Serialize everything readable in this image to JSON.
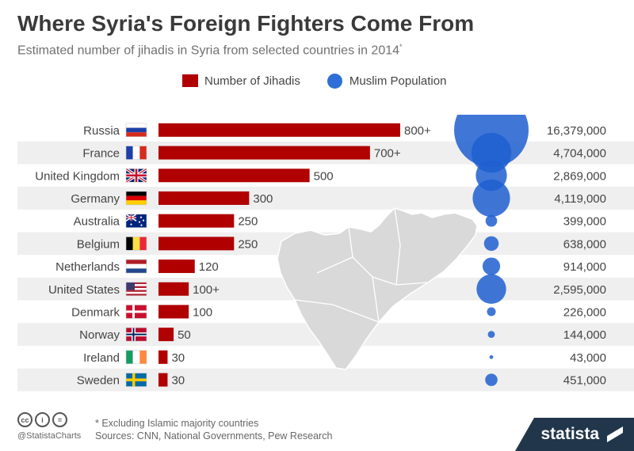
{
  "title": "Where Syria's Foreign Fighters Come From",
  "subtitle": "Estimated number of jihadis in Syria from selected countries in 2014",
  "subtitle_mark": "*",
  "legend": {
    "bars": "Number of Jihadis",
    "bubbles": "Muslim Population"
  },
  "colors": {
    "bar": "#b00000",
    "bubble": "#1f5fd0",
    "stripe": "#efefef",
    "map": "#d9d9d9"
  },
  "chart_data": {
    "type": "bar",
    "categories": [
      "Russia",
      "France",
      "United Kingdom",
      "Germany",
      "Australia",
      "Belgium",
      "Netherlands",
      "United States",
      "Denmark",
      "Norway",
      "Ireland",
      "Sweden"
    ],
    "flags": [
      "russia-flag",
      "france-flag",
      "uk-flag",
      "germany-flag",
      "australia-flag",
      "belgium-flag",
      "netherlands-flag",
      "usa-flag",
      "denmark-flag",
      "norway-flag",
      "ireland-flag",
      "sweden-flag"
    ],
    "series": [
      {
        "name": "Number of Jihadis",
        "values": [
          800,
          700,
          500,
          300,
          250,
          250,
          120,
          100,
          100,
          50,
          30,
          30
        ],
        "labels": [
          "800+",
          "700+",
          "500",
          "300",
          "250",
          "250",
          "120",
          "100+",
          "100",
          "50",
          "30",
          "30"
        ]
      },
      {
        "name": "Muslim Population",
        "values": [
          16379000,
          4704000,
          2869000,
          4119000,
          399000,
          638000,
          914000,
          2595000,
          226000,
          144000,
          43000,
          451000
        ],
        "labels": [
          "16,379,000",
          "4,704,000",
          "2,869,000",
          "4,119,000",
          "399,000",
          "638,000",
          "914,000",
          "2,595,000",
          "226,000",
          "144,000",
          "43,000",
          "451,000"
        ]
      }
    ]
  },
  "footer": {
    "note": "* Excluding Islamic majority countries",
    "sources": "Sources: CNN, National Governments, Pew Research",
    "handle": "@StatistaCharts",
    "brand": "statista",
    "license_icons": [
      "cc-icon",
      "attribution-icon",
      "no-derivatives-icon"
    ]
  }
}
